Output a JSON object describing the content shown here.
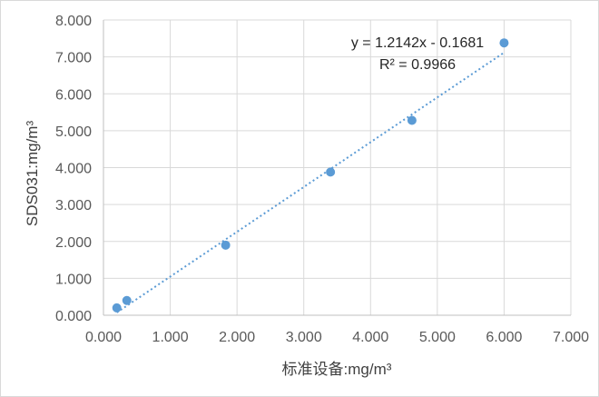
{
  "chart_data": {
    "type": "scatter",
    "x": [
      0.2,
      0.35,
      1.83,
      3.4,
      4.62,
      6.0
    ],
    "y": [
      0.2,
      0.4,
      1.9,
      3.88,
      5.28,
      7.38
    ],
    "xlabel": "标准设备:mg/m³",
    "ylabel": "SDS031:mg/m³",
    "xlim": [
      0,
      7
    ],
    "ylim": [
      0,
      8
    ],
    "x_ticks": [
      "0.000",
      "1.000",
      "2.000",
      "3.000",
      "4.000",
      "5.000",
      "6.000",
      "7.000"
    ],
    "y_ticks": [
      "0.000",
      "1.000",
      "2.000",
      "3.000",
      "4.000",
      "5.000",
      "6.000",
      "7.000",
      "8.000"
    ],
    "grid": true,
    "trendline": {
      "type": "linear",
      "slope": 1.2142,
      "intercept": -0.1681,
      "x_range": [
        0.2,
        6.0
      ],
      "equation": "y = 1.2142x - 0.1681",
      "r2": "R² = 0.9966"
    },
    "colors": {
      "marker": "#5b9bd5",
      "trendline": "#5b9bd5",
      "grid": "#d9d9d9",
      "axis": "#bfbfbf"
    }
  }
}
